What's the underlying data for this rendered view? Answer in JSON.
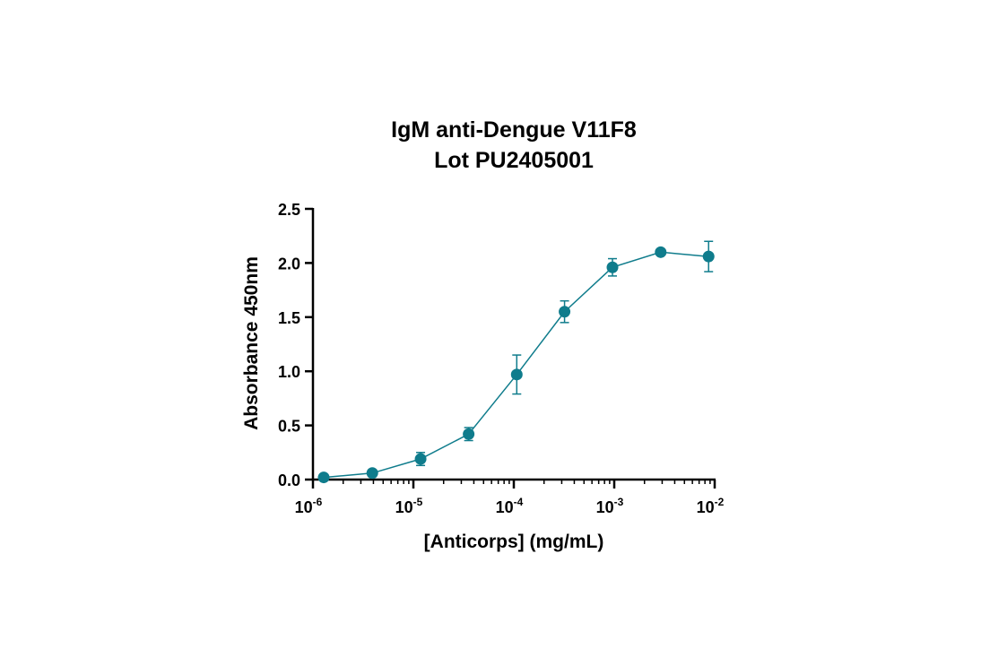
{
  "chart_data": {
    "type": "line",
    "title": "IgM anti-Dengue V11F8",
    "subtitle": "Lot PU2405001",
    "xlabel": "[Anticorps] (mg/mL)",
    "ylabel": "Absorbance 450nm",
    "x_scale": "log",
    "xlim": [
      1e-06,
      0.01
    ],
    "ylim": [
      0,
      2.5
    ],
    "x_ticks": [
      {
        "value": 1e-06,
        "base": "10",
        "exp": "-6"
      },
      {
        "value": 1e-05,
        "base": "10",
        "exp": "-5"
      },
      {
        "value": 0.0001,
        "base": "10",
        "exp": "-4"
      },
      {
        "value": 0.001,
        "base": "10",
        "exp": "-3"
      },
      {
        "value": 0.01,
        "base": "10",
        "exp": "-2"
      }
    ],
    "y_ticks": [
      "0.0",
      "0.5",
      "1.0",
      "1.5",
      "2.0",
      "2.5"
    ],
    "grid": false,
    "color": "#0f7c8c",
    "series": [
      {
        "x": [
          1.28e-06,
          3.9e-06,
          1.18e-05,
          3.55e-05,
          0.000107,
          0.00032,
          0.00096,
          0.0029,
          0.0087
        ],
        "y": [
          0.02,
          0.06,
          0.19,
          0.42,
          0.97,
          1.55,
          1.96,
          2.1,
          2.06
        ],
        "error": [
          0.02,
          0.02,
          0.06,
          0.06,
          0.18,
          0.1,
          0.08,
          0.02,
          0.14
        ]
      }
    ]
  }
}
